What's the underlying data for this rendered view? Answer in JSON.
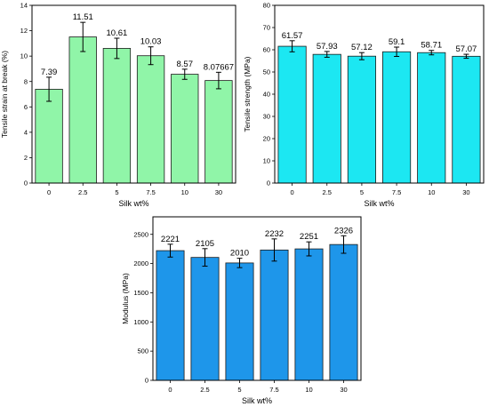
{
  "chart_data": [
    {
      "type": "bar",
      "xlabel": "Silk wt%",
      "ylabel": "Tensile strain at break (%)",
      "categories": [
        "0",
        "2.5",
        "5",
        "7.5",
        "10",
        "30"
      ],
      "values": [
        7.39,
        11.51,
        10.61,
        10.03,
        8.57,
        8.07667
      ],
      "value_labels": [
        "7.39",
        "11.51",
        "10.61",
        "10.03",
        "8.57",
        "8.07667"
      ],
      "errors": [
        0.95,
        1.15,
        0.8,
        0.7,
        0.4,
        0.65
      ],
      "ylim": [
        0,
        14
      ],
      "yticks": [
        0,
        2,
        4,
        6,
        8,
        10,
        12,
        14
      ],
      "bar_color": "#90f5a8",
      "grid": false
    },
    {
      "type": "bar",
      "xlabel": "Silk wt%",
      "ylabel": "Tensile strength (MPa)",
      "categories": [
        "0",
        "2.5",
        "5",
        "7.5",
        "10",
        "30"
      ],
      "values": [
        61.57,
        57.93,
        57.12,
        59.1,
        58.71,
        57.07
      ],
      "value_labels": [
        "61.57",
        "57.93",
        "57.12",
        "59.1",
        "58.71",
        "57.07"
      ],
      "errors": [
        2.5,
        1.3,
        1.6,
        2.1,
        1.0,
        0.9
      ],
      "ylim": [
        0,
        80
      ],
      "yticks": [
        0,
        10,
        20,
        30,
        40,
        50,
        60,
        70,
        80
      ],
      "bar_color": "#1ce7f2",
      "grid": false
    },
    {
      "type": "bar",
      "xlabel": "Silk wt%",
      "ylabel": "Modulus (MPa)",
      "categories": [
        "0",
        "2.5",
        "5",
        "7.5",
        "10",
        "30"
      ],
      "values": [
        2221,
        2105,
        2010,
        2232,
        2251,
        2326
      ],
      "value_labels": [
        "2221",
        "2105",
        "2010",
        "2232",
        "2251",
        "2326"
      ],
      "errors": [
        110,
        150,
        80,
        190,
        120,
        150
      ],
      "ylim": [
        0,
        2800
      ],
      "yticks": [
        0,
        500,
        1000,
        1500,
        2000,
        2500
      ],
      "bar_color": "#1e96ea",
      "grid": false
    }
  ]
}
